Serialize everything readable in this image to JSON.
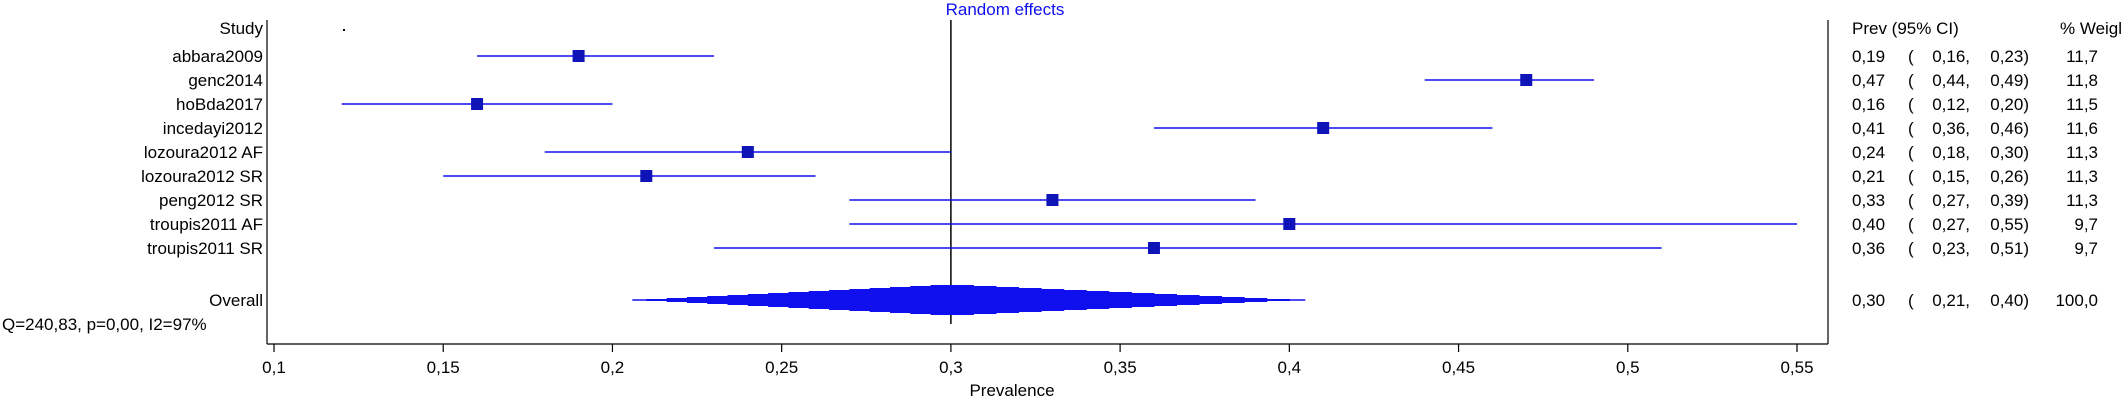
{
  "chart_data": {
    "type": "forest",
    "title": "Random effects",
    "xlabel": "Prevalence",
    "xlim": [
      0.1,
      0.55
    ],
    "x_ticks": [
      "0,1",
      "0,15",
      "0,2",
      "0,25",
      "0,3",
      "0,35",
      "0,4",
      "0,45",
      "0,5",
      "0,55"
    ],
    "reference_line": 0.3,
    "col_study": "Study",
    "col_ci": "Prev (95% CI)",
    "col_weight": "% Weigl",
    "studies": [
      {
        "name": "abbara2009",
        "est": 0.19,
        "lo": 0.16,
        "hi": 0.23,
        "prev": "0,19",
        "lo_str": "0,16,",
        "hi_str": "0,23)",
        "weight": "11,7"
      },
      {
        "name": "genc2014",
        "est": 0.47,
        "lo": 0.44,
        "hi": 0.49,
        "prev": "0,47",
        "lo_str": "0,44,",
        "hi_str": "0,49)",
        "weight": "11,8"
      },
      {
        "name": "hoBda2017",
        "est": 0.16,
        "lo": 0.12,
        "hi": 0.2,
        "prev": "0,16",
        "lo_str": "0,12,",
        "hi_str": "0,20)",
        "weight": "11,5"
      },
      {
        "name": "incedayi2012",
        "est": 0.41,
        "lo": 0.36,
        "hi": 0.46,
        "prev": "0,41",
        "lo_str": "0,36,",
        "hi_str": "0,46)",
        "weight": "11,6"
      },
      {
        "name": "lozoura2012 AF",
        "est": 0.24,
        "lo": 0.18,
        "hi": 0.3,
        "prev": "0,24",
        "lo_str": "0,18,",
        "hi_str": "0,30)",
        "weight": "11,3"
      },
      {
        "name": "lozoura2012 SR",
        "est": 0.21,
        "lo": 0.15,
        "hi": 0.26,
        "prev": "0,21",
        "lo_str": "0,15,",
        "hi_str": "0,26)",
        "weight": "11,3"
      },
      {
        "name": "peng2012 SR",
        "est": 0.33,
        "lo": 0.27,
        "hi": 0.39,
        "prev": "0,33",
        "lo_str": "0,27,",
        "hi_str": "0,39)",
        "weight": "11,3"
      },
      {
        "name": "troupis2011 AF",
        "est": 0.4,
        "lo": 0.27,
        "hi": 0.55,
        "prev": "0,40",
        "lo_str": "0,27,",
        "hi_str": "0,55)",
        "weight": "9,7"
      },
      {
        "name": "troupis2011 SR",
        "est": 0.36,
        "lo": 0.23,
        "hi": 0.51,
        "prev": "0,36",
        "lo_str": "0,23,",
        "hi_str": "0,51)",
        "weight": "9,7"
      }
    ],
    "overall": {
      "name": "Overall",
      "est": 0.3,
      "lo": 0.21,
      "hi": 0.4,
      "prev": "0,30",
      "lo_str": "0,21,",
      "hi_str": "0,40)",
      "weight": "100,0"
    },
    "heterogeneity": "Q=240,83, p=0,00, I2=97%",
    "colors": {
      "marker": "#1010ee",
      "text": "#000000",
      "axis": "#000000"
    }
  }
}
